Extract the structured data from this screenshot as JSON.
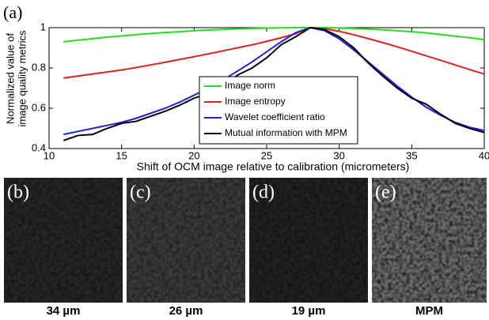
{
  "chart_data": {
    "type": "line",
    "panel_label": "(a)",
    "xlabel": "Shift of OCM image relative to calibration (micrometers)",
    "ylabel": [
      "Normalized value of",
      "image quality metrics"
    ],
    "x": [
      11,
      12,
      13,
      14,
      15,
      16,
      17,
      18,
      19,
      20,
      21,
      22,
      23,
      24,
      25,
      26,
      27,
      28,
      29,
      30,
      31,
      32,
      33,
      34,
      35,
      36,
      37,
      38,
      39,
      40
    ],
    "series": [
      {
        "name": "Image norm",
        "color": "#22dd22",
        "values": [
          0.93,
          0.938,
          0.945,
          0.953,
          0.959,
          0.965,
          0.971,
          0.976,
          0.98,
          0.985,
          0.988,
          0.991,
          0.994,
          0.996,
          0.998,
          0.999,
          1.0,
          1.0,
          1.0,
          0.998,
          0.996,
          0.993,
          0.989,
          0.985,
          0.98,
          0.974,
          0.966,
          0.958,
          0.95,
          0.94
        ]
      },
      {
        "name": "Image entropy",
        "color": "#e02020",
        "values": [
          0.75,
          0.76,
          0.77,
          0.78,
          0.79,
          0.802,
          0.815,
          0.828,
          0.842,
          0.856,
          0.87,
          0.885,
          0.9,
          0.915,
          0.932,
          0.95,
          0.97,
          1.0,
          0.995,
          0.982,
          0.965,
          0.946,
          0.926,
          0.905,
          0.883,
          0.86,
          0.838,
          0.815,
          0.792,
          0.77
        ]
      },
      {
        "name": "Wavelet coefficient ratio",
        "color": "#2020e0",
        "values": [
          0.47,
          0.485,
          0.5,
          0.515,
          0.53,
          0.55,
          0.575,
          0.6,
          0.63,
          0.665,
          0.7,
          0.74,
          0.785,
          0.83,
          0.88,
          0.93,
          0.975,
          1.0,
          0.985,
          0.945,
          0.89,
          0.83,
          0.77,
          0.71,
          0.655,
          0.605,
          0.565,
          0.53,
          0.505,
          0.49
        ]
      },
      {
        "name": "Mutual information with MPM",
        "color": "#000000",
        "values": [
          0.44,
          0.465,
          0.47,
          0.5,
          0.525,
          0.535,
          0.56,
          0.585,
          0.615,
          0.65,
          0.675,
          0.71,
          0.765,
          0.8,
          0.85,
          0.915,
          0.955,
          1.0,
          0.99,
          0.955,
          0.9,
          0.825,
          0.76,
          0.7,
          0.65,
          0.62,
          0.57,
          0.525,
          0.5,
          0.48
        ]
      }
    ],
    "xlim": [
      10,
      40
    ],
    "xticks": [
      10,
      15,
      20,
      25,
      30,
      35,
      40
    ],
    "ylim": [
      0.4,
      1
    ],
    "yticks": [
      0.4,
      0.6,
      0.8,
      1
    ],
    "legend": "lower center"
  },
  "panels": [
    {
      "label": "(b)",
      "caption": "34 µm"
    },
    {
      "label": "(c)",
      "caption": "26 µm"
    },
    {
      "label": "(d)",
      "caption": "19 µm"
    },
    {
      "label": "(e)",
      "caption": "MPM"
    }
  ]
}
